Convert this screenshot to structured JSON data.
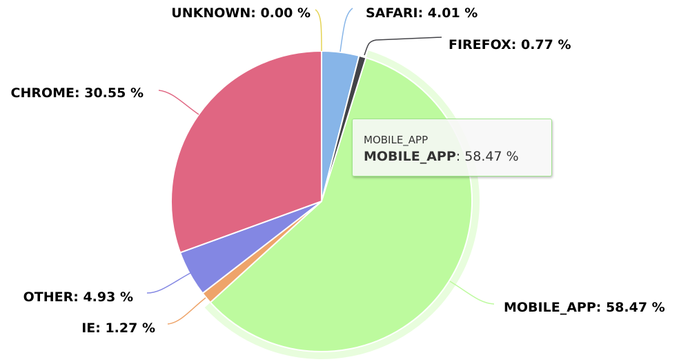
{
  "chart_data": {
    "type": "pie",
    "unit": "%",
    "slices": [
      {
        "name": "UNKNOWN",
        "value": 0.0,
        "label": "UNKNOWN: 0.00 %",
        "color": "#e4d354"
      },
      {
        "name": "SAFARI",
        "value": 4.01,
        "label": "SAFARI: 4.01 %",
        "color": "#87b5e8"
      },
      {
        "name": "FIREFOX",
        "value": 0.77,
        "label": "FIREFOX: 0.77 %",
        "color": "#434348"
      },
      {
        "name": "MOBILE_APP",
        "value": 58.47,
        "label": "MOBILE_APP: 58.47 %",
        "color": "#bdfa9e",
        "hovered": true
      },
      {
        "name": "IE",
        "value": 1.27,
        "label": "IE: 1.27 %",
        "color": "#eea46a"
      },
      {
        "name": "OTHER",
        "value": 4.93,
        "label": "OTHER: 4.93 %",
        "color": "#8387e3"
      },
      {
        "name": "CHROME",
        "value": 30.55,
        "label": "CHROME: 30.55 %",
        "color": "#e06682"
      }
    ],
    "start_angle": "top, clockwise"
  },
  "tooltip": {
    "header": "MOBILE_APP",
    "series_name": "MOBILE_APP",
    "value": "58.47 %",
    "border_color": "#9fe58c"
  }
}
